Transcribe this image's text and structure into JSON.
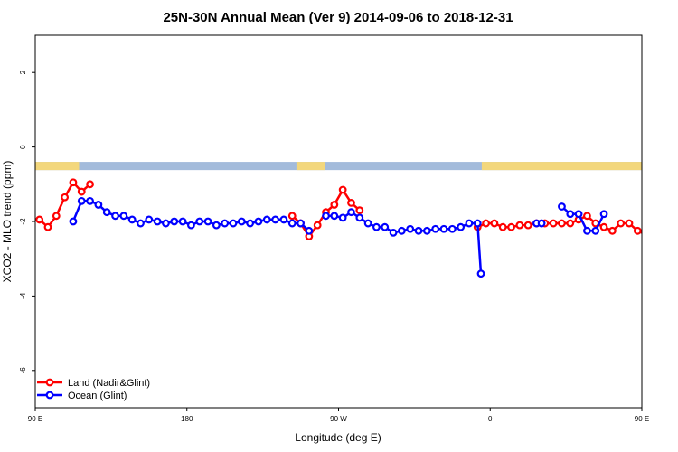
{
  "chart_data": {
    "type": "line",
    "title": "25N-30N Annual Mean (Ver 9)   2014-09-06 to 2018-12-31",
    "xlabel": "Longitude (deg E)",
    "ylabel": "XCO2 - MLO trend (ppm)",
    "xlim": [
      90,
      450
    ],
    "ylim": [
      -7,
      3
    ],
    "x_ticks": [
      {
        "value": 90,
        "label": "90 E"
      },
      {
        "value": 180,
        "label": "180"
      },
      {
        "value": 270,
        "label": "90 W"
      },
      {
        "value": 360,
        "label": "0"
      },
      {
        "value": 450,
        "label": "90 E"
      },
      {
        "value": 540,
        "label": "180"
      }
    ],
    "y_ticks": [
      {
        "value": 2,
        "label": "2"
      },
      {
        "value": 0,
        "label": "0"
      },
      {
        "value": -2,
        "label": "-2"
      },
      {
        "value": -4,
        "label": "-4"
      },
      {
        "value": -6,
        "label": "-6"
      }
    ],
    "land_band": {
      "y_range": [
        -0.4,
        -0.62
      ],
      "ocean_color": "#a3bbdb",
      "land_color": "#f3d77c",
      "land_segments": [
        [
          90,
          116
        ],
        [
          245,
          262
        ],
        [
          355,
          458
        ]
      ]
    },
    "series": [
      {
        "name": "Land (Nadir&Glint)",
        "color": "#ff0000",
        "segments": [
          {
            "x": [
              92.5,
              97.5,
              102.5,
              107.5,
              112.5,
              117.5,
              122.5
            ],
            "y": [
              -1.95,
              -2.15,
              -1.85,
              -1.35,
              -0.95,
              -1.2,
              -1.0
            ]
          },
          {
            "x": [
              242.5,
              247.5,
              252.5,
              257.5,
              262.5,
              267.5,
              272.5,
              277.5,
              282.5
            ],
            "y": [
              -1.85,
              -2.05,
              -2.4,
              -2.1,
              -1.75,
              -1.55,
              -1.15,
              -1.5,
              -1.7
            ]
          },
          {
            "x": [
              352.5,
              357.5,
              362.5,
              367.5,
              372.5,
              377.5,
              382.5,
              387.5,
              392.5,
              397.5,
              402.5,
              407.5,
              412.5,
              417.5,
              422.5,
              427.5,
              432.5,
              437.5,
              442.5,
              447.5,
              452.5,
              457.5,
              462.5,
              467.5,
              472.5
            ],
            "y": [
              -2.15,
              -2.05,
              -2.05,
              -2.15,
              -2.15,
              -2.1,
              -2.1,
              -2.05,
              -2.05,
              -2.05,
              -2.05,
              -2.05,
              -1.95,
              -1.85,
              -2.05,
              -2.15,
              -2.25,
              -2.05,
              -2.05,
              -2.25,
              -2.35,
              -1.95,
              -2.15,
              -1.85,
              -1.35
            ]
          },
          {
            "x": [
              467.5,
              472.5,
              477.5,
              482.5,
              487.5
            ],
            "y": [
              -1.85,
              -1.35,
              -0.95,
              -1.2,
              -1.0
            ]
          }
        ]
      },
      {
        "name": "Ocean (Glint)",
        "color": "#0000ff",
        "segments": [
          {
            "x": [
              112.5,
              117.5,
              122.5,
              127.5,
              132.5,
              137.5,
              142.5,
              147.5,
              152.5,
              157.5,
              162.5,
              167.5,
              172.5,
              177.5,
              182.5,
              187.5,
              192.5,
              197.5,
              202.5,
              207.5,
              212.5,
              217.5,
              222.5,
              227.5,
              232.5,
              237.5,
              242.5,
              247.5,
              252.5
            ],
            "y": [
              -2.0,
              -1.45,
              -1.45,
              -1.55,
              -1.75,
              -1.85,
              -1.85,
              -1.95,
              -2.05,
              -1.95,
              -2.0,
              -2.05,
              -2.0,
              -2.0,
              -2.1,
              -2.0,
              -2.0,
              -2.1,
              -2.05,
              -2.05,
              -2.0,
              -2.05,
              -2.0,
              -1.95,
              -1.95,
              -1.95,
              -2.05,
              -2.05,
              -2.25
            ]
          },
          {
            "x": [
              262.5,
              267.5,
              272.5,
              277.5,
              282.5,
              287.5,
              292.5,
              297.5,
              302.5,
              307.5,
              312.5,
              317.5,
              322.5,
              327.5,
              332.5,
              337.5,
              342.5,
              347.5,
              352.5,
              354.5
            ],
            "y": [
              -1.85,
              -1.85,
              -1.9,
              -1.75,
              -1.9,
              -2.05,
              -2.15,
              -2.15,
              -2.3,
              -2.25,
              -2.2,
              -2.25,
              -2.25,
              -2.2,
              -2.2,
              -2.2,
              -2.15,
              -2.05,
              -2.05,
              -3.4
            ]
          },
          {
            "x": [
              387.5,
              390.5
            ],
            "y": [
              -2.05,
              -2.05
            ]
          },
          {
            "x": [
              402.5,
              407.5,
              412.5,
              417.5,
              422.5,
              427.5
            ],
            "y": [
              -1.6,
              -1.8,
              -1.8,
              -2.25,
              -2.25,
              -1.8
            ]
          },
          {
            "x": [
              482.5,
              487.5,
              492.5,
              497.5,
              502.5,
              507.5,
              512.5,
              517.5,
              522.5,
              527.5,
              532.5,
              537.5,
              542.5
            ],
            "y": [
              -2.0,
              -1.45,
              -1.45,
              -1.5,
              -1.7,
              -1.8,
              -1.8,
              -1.95,
              -2.0,
              -1.95,
              -2.0,
              -2.05,
              -2.0
            ]
          }
        ]
      }
    ],
    "legend": {
      "position": "bottom-left"
    }
  }
}
